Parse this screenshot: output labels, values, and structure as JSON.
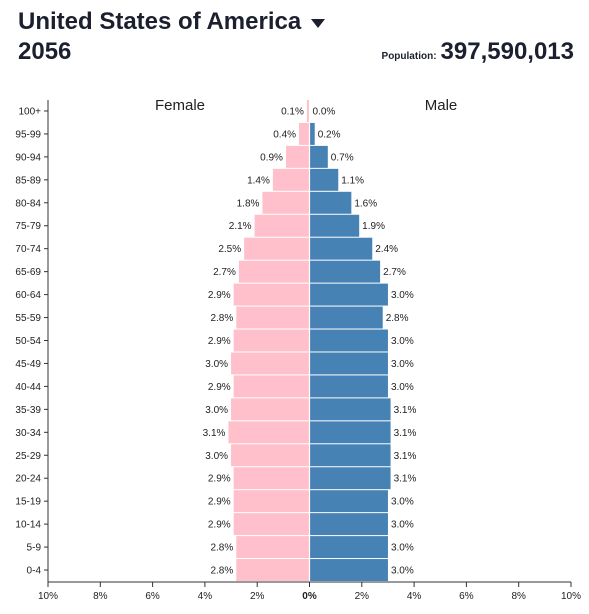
{
  "header": {
    "country": "United States of America",
    "year": "2056",
    "population_label": "Population:",
    "population_value": "397,590,013"
  },
  "colors": {
    "female": "#ffc0cb",
    "male": "#4682b4",
    "axis": "#333333"
  },
  "chart_data": {
    "type": "bar",
    "orientation": "horizontal-pyramid",
    "title": "",
    "xlabel": "",
    "ylabel": "",
    "xlim": [
      -10,
      10
    ],
    "x_ticks": [
      "10%",
      "8%",
      "6%",
      "4%",
      "2%",
      "0%",
      "2%",
      "4%",
      "6%",
      "8%",
      "10%"
    ],
    "categories": [
      "100+",
      "95-99",
      "90-94",
      "85-89",
      "80-84",
      "75-79",
      "70-74",
      "65-69",
      "60-64",
      "55-59",
      "50-54",
      "45-49",
      "40-44",
      "35-39",
      "30-34",
      "25-29",
      "20-24",
      "15-19",
      "10-14",
      "5-9",
      "0-4"
    ],
    "series": [
      {
        "name": "Female",
        "values": [
          0.1,
          0.4,
          0.9,
          1.4,
          1.8,
          2.1,
          2.5,
          2.7,
          2.9,
          2.8,
          2.9,
          3.0,
          2.9,
          3.0,
          3.1,
          3.0,
          2.9,
          2.9,
          2.9,
          2.8,
          2.8
        ],
        "labels": [
          "0.1%",
          "0.4%",
          "0.9%",
          "1.4%",
          "1.8%",
          "2.1%",
          "2.5%",
          "2.7%",
          "2.9%",
          "2.8%",
          "2.9%",
          "3.0%",
          "2.9%",
          "3.0%",
          "3.1%",
          "3.0%",
          "2.9%",
          "2.9%",
          "2.9%",
          "2.8%",
          "2.8%"
        ]
      },
      {
        "name": "Male",
        "values": [
          0.0,
          0.2,
          0.7,
          1.1,
          1.6,
          1.9,
          2.4,
          2.7,
          3.0,
          2.8,
          3.0,
          3.0,
          3.0,
          3.1,
          3.1,
          3.1,
          3.1,
          3.0,
          3.0,
          3.0,
          3.0
        ],
        "labels": [
          "0.0%",
          "0.2%",
          "0.7%",
          "1.1%",
          "1.6%",
          "1.9%",
          "2.4%",
          "2.7%",
          "3.0%",
          "2.8%",
          "3.0%",
          "3.0%",
          "3.0%",
          "3.1%",
          "3.1%",
          "3.1%",
          "3.1%",
          "3.0%",
          "3.0%",
          "3.0%",
          "3.0%"
        ]
      }
    ],
    "grid": false,
    "legend": "in-plot-top"
  }
}
